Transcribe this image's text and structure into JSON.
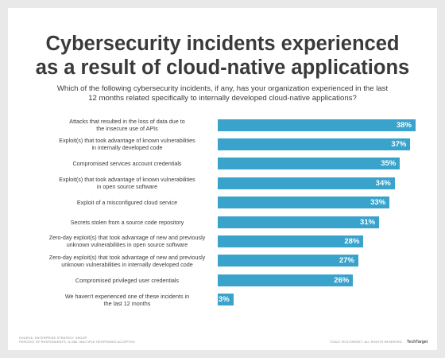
{
  "title_lines": [
    "Cybersecurity incidents experienced",
    "as a result of cloud-native applications"
  ],
  "subtitle_lines": [
    "Which of the following cybersecurity incidents, if any, has your organization experienced in the last",
    "12 months related specifically to internally developed cloud-native applications?"
  ],
  "footer": {
    "source_lines": [
      "SOURCE: ENTERPRISE STRATEGY GROUP",
      "PERCENT OF RESPONDENTS, N=384; MULTIPLE RESPONSES ACCEPTED"
    ],
    "copyright": "©2023 TECHTARGET. ALL RIGHTS RESERVED",
    "logo_text": "TechTarget"
  },
  "colors": {
    "bar": "#3aa3cc",
    "title": "#3a3a3a"
  },
  "chart_data": {
    "type": "bar",
    "orientation": "horizontal",
    "categories": [
      [
        "Attacks that resulted in the loss of data due to",
        "the insecure use of APIs"
      ],
      [
        "Exploit(s) that took advantage of known vulnerabilities",
        "in internally developed code"
      ],
      [
        "Compromised services account credentials"
      ],
      [
        "Exploit(s) that took advantage of known vulnerabilities",
        "in open source software"
      ],
      [
        "Exploit of a misconfigured cloud service"
      ],
      [
        "Secrets stolen from a source code repository"
      ],
      [
        "Zero-day exploit(s) that took advantage of new and previously",
        "unknown vulnerabilities in open source software"
      ],
      [
        "Zero-day exploit(s) that took advantage of new and previously",
        "unknown vulnerabilities in internally developed code"
      ],
      [
        "Compromised privileged user credentials"
      ],
      [
        "We haven't experienced one of these incidents in",
        "the last 12 months"
      ]
    ],
    "values": [
      38,
      37,
      35,
      34,
      33,
      31,
      28,
      27,
      26,
      3
    ],
    "value_labels": [
      "38%",
      "37%",
      "35%",
      "34%",
      "33%",
      "31%",
      "28%",
      "27%",
      "26%",
      "3%"
    ],
    "xlim": [
      0,
      40
    ],
    "grid": false
  }
}
